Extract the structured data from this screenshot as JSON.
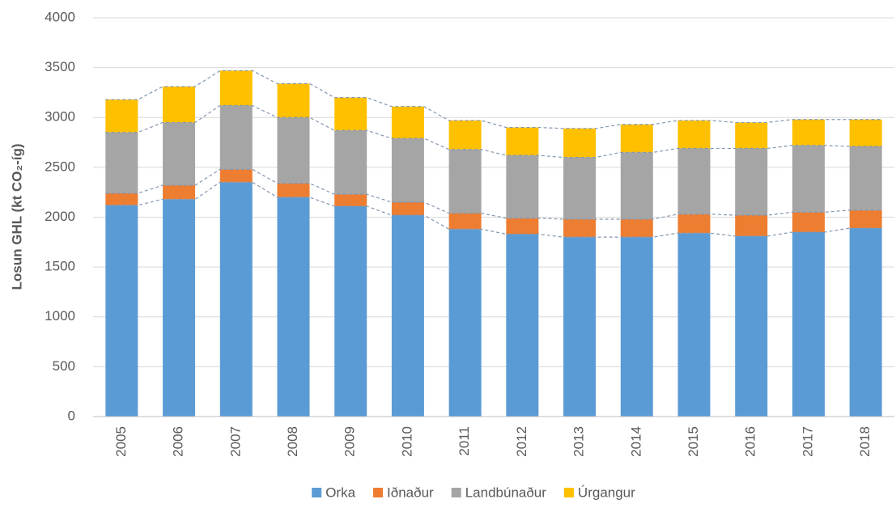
{
  "chart_data": {
    "type": "stacked_bar",
    "y_label": "Losun GHL (kt CO₂-íg)",
    "categories": [
      "2005",
      "2006",
      "2007",
      "2008",
      "2009",
      "2010",
      "2011",
      "2012",
      "2013",
      "2014",
      "2015",
      "2016",
      "2017",
      "2018"
    ],
    "series": [
      {
        "name": "Orka",
        "color": "#5b9bd5",
        "values": [
          2120,
          2180,
          2350,
          2200,
          2110,
          2020,
          1880,
          1830,
          1800,
          1800,
          1840,
          1810,
          1850,
          1890
        ]
      },
      {
        "name": "Iðnaður",
        "color": "#ed7d31",
        "values": [
          120,
          140,
          130,
          140,
          120,
          130,
          160,
          160,
          180,
          180,
          190,
          210,
          200,
          180
        ]
      },
      {
        "name": "Landbúnaður",
        "color": "#a5a5a5",
        "values": [
          610,
          630,
          640,
          660,
          640,
          640,
          640,
          630,
          620,
          670,
          660,
          670,
          670,
          640
        ]
      },
      {
        "name": "Úrgangur",
        "color": "#ffc000",
        "values": [
          330,
          360,
          350,
          340,
          330,
          320,
          290,
          280,
          290,
          280,
          280,
          260,
          260,
          270
        ]
      }
    ],
    "ylim": [
      0,
      4000
    ],
    "yticks": [
      0,
      500,
      1000,
      1500,
      2000,
      2500,
      3000,
      3500,
      4000
    ],
    "grid": true,
    "legend": "bottom"
  }
}
